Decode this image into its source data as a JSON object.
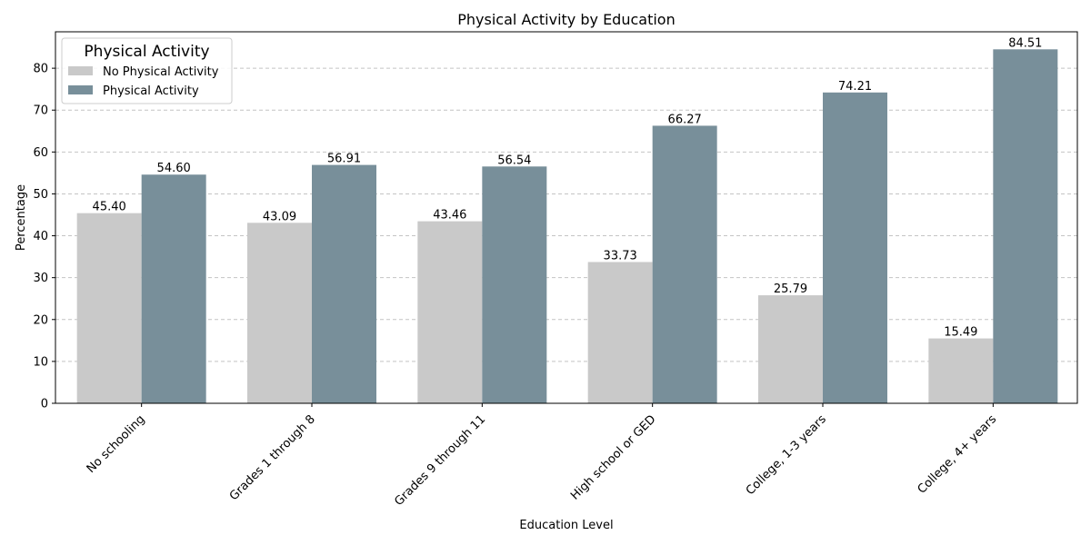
{
  "chart_data": {
    "type": "bar",
    "title": "Physical Activity by Education",
    "xlabel": "Education Level",
    "ylabel": "Percentage",
    "ylim": [
      0,
      88.7
    ],
    "yticks": [
      0,
      10,
      20,
      30,
      40,
      50,
      60,
      70,
      80
    ],
    "grid": "y-dashed",
    "legend_title": "Physical Activity",
    "legend_position": "top-left",
    "categories": [
      "No schooling",
      "Grades 1 through 8",
      "Grades 9 through 11",
      "High school or GED",
      "College, 1-3 years",
      "College, 4+ years"
    ],
    "series": [
      {
        "name": "No Physical Activity",
        "color": "#c9c9c9",
        "values": [
          45.4,
          43.09,
          43.46,
          33.73,
          25.79,
          15.49
        ],
        "labels": [
          "45.40",
          "43.09",
          "43.46",
          "33.73",
          "25.79",
          "15.49"
        ]
      },
      {
        "name": "Physical Activity",
        "color": "#788f9a",
        "values": [
          54.6,
          56.91,
          56.54,
          66.27,
          74.21,
          84.51
        ],
        "labels": [
          "54.60",
          "56.91",
          "56.54",
          "66.27",
          "74.21",
          "84.51"
        ]
      }
    ]
  }
}
